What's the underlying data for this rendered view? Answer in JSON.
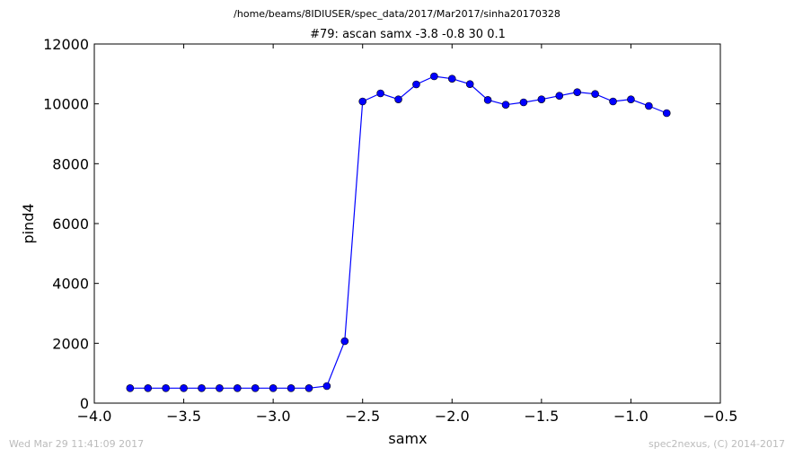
{
  "figure": {
    "path_title": "/home/beams/8IDIUSER/spec_data/2017/Mar2017/sinha20170328",
    "scan_title": "#79: ascan  samx -3.8 -0.8  30 0.1",
    "timestamp": "Wed Mar 29 11:41:09 2017",
    "credit": "spec2nexus, (C) 2014-2017"
  },
  "chart_data": {
    "type": "line",
    "title": "#79: ascan  samx -3.8 -0.8  30 0.1",
    "xlabel": "samx",
    "ylabel": "pind4",
    "xlim": [
      -4.0,
      -0.5
    ],
    "ylim": [
      0,
      12000
    ],
    "xticks": [
      -4.0,
      -3.5,
      -3.0,
      -2.5,
      -2.0,
      -1.5,
      -1.0,
      -0.5
    ],
    "xtick_labels": [
      "−4.0",
      "−3.5",
      "−3.0",
      "−2.5",
      "−2.0",
      "−1.5",
      "−1.0",
      "−0.5"
    ],
    "yticks": [
      0,
      2000,
      4000,
      6000,
      8000,
      10000,
      12000
    ],
    "ytick_labels": [
      "0",
      "2000",
      "4000",
      "6000",
      "8000",
      "10000",
      "12000"
    ],
    "grid": false,
    "color": "#0000ff",
    "marker": "circle",
    "series": [
      {
        "x": [
          -3.8,
          -3.7,
          -3.6,
          -3.5,
          -3.4,
          -3.3,
          -3.2,
          -3.1,
          -3.0,
          -2.9,
          -2.8,
          -2.7,
          -2.6,
          -2.5,
          -2.4,
          -2.3,
          -2.2,
          -2.1,
          -2.0,
          -1.9,
          -1.8,
          -1.7,
          -1.6,
          -1.5,
          -1.4,
          -1.3,
          -1.2,
          -1.1,
          -1.0,
          -0.9,
          -0.8
        ],
        "y": [
          500,
          500,
          500,
          500,
          500,
          500,
          500,
          500,
          500,
          500,
          500,
          570,
          2070,
          10080,
          10350,
          10150,
          10650,
          10920,
          10840,
          10660,
          10130,
          9970,
          10050,
          10150,
          10270,
          10390,
          10330,
          10080,
          10150,
          9930,
          9690
        ]
      }
    ]
  }
}
